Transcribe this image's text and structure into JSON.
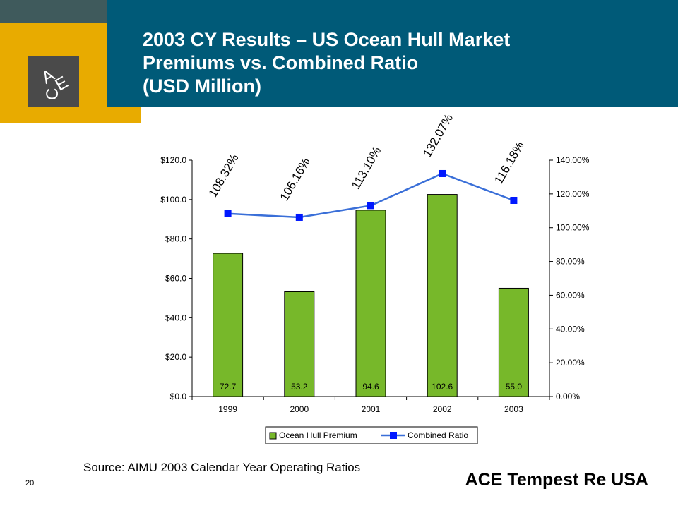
{
  "header": {
    "title_lines": [
      "2003 CY Results – US Ocean Hull Market",
      "Premiums vs. Combined Ratio",
      "(USD Million)"
    ]
  },
  "logo": {
    "letters": [
      "A",
      "C",
      "E"
    ]
  },
  "colors": {
    "title_bar": "#005a78",
    "gold": "#e8ab00",
    "dark_strip": "#3f5a5c",
    "bar": "#77b82a",
    "line": "#3a6fd8",
    "marker": "#0018ff"
  },
  "chart_data": {
    "type": "bar",
    "categories": [
      "1999",
      "2000",
      "2001",
      "2002",
      "2003"
    ],
    "series": [
      {
        "name": "Ocean Hull Premium",
        "type": "bar",
        "axis": "left",
        "values": [
          72.7,
          53.2,
          94.6,
          102.6,
          55.0
        ],
        "labels": [
          "72.7",
          "53.2",
          "94.6",
          "102.6",
          "55.0"
        ]
      },
      {
        "name": "Combined Ratio",
        "type": "line",
        "axis": "right",
        "values": [
          108.32,
          106.16,
          113.1,
          132.07,
          116.18
        ],
        "labels": [
          "108.32%",
          "106.16%",
          "113.10%",
          "132.07%",
          "116.18%"
        ]
      }
    ],
    "y_left": {
      "min": 0,
      "max": 120,
      "ticks": [
        "$0.0",
        "$20.0",
        "$40.0",
        "$60.0",
        "$80.0",
        "$100.0",
        "$120.0"
      ]
    },
    "y_right": {
      "min": 0,
      "max": 140,
      "ticks": [
        "0.00%",
        "20.00%",
        "40.00%",
        "60.00%",
        "80.00%",
        "100.00%",
        "120.00%",
        "140.00%"
      ]
    },
    "legend": {
      "position": "bottom",
      "items": [
        "Ocean Hull Premium",
        "Combined Ratio"
      ]
    },
    "grid": false
  },
  "footer": {
    "source": "Source: AIMU 2003 Calendar Year  Operating Ratios",
    "page_number": "20",
    "company": "ACE Tempest Re USA"
  }
}
